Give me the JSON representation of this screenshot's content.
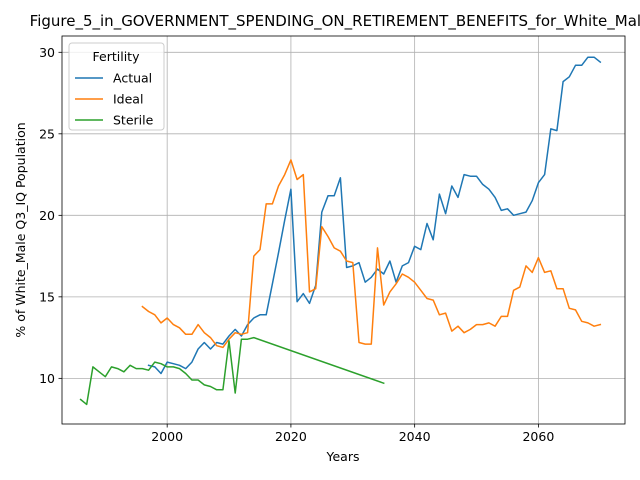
{
  "chart_data": {
    "type": "line",
    "title": "Figure_5_in_GOVERNMENT_SPENDING_ON_RETIREMENT_BENEFITS_for_White_Male",
    "xlabel": "Years",
    "ylabel": "% of White_Male Q3_IQ Population",
    "xlim": [
      1983,
      2074
    ],
    "ylim": [
      7.2,
      31.0
    ],
    "xticks": [
      2000,
      2020,
      2040,
      2060
    ],
    "yticks": [
      10,
      15,
      20,
      25,
      30
    ],
    "grid": true,
    "legend": {
      "title": "Fertility",
      "placement": "top-left"
    },
    "series": [
      {
        "name": "Actual",
        "color": "#1f77b4",
        "x": [
          1997,
          1998,
          1999,
          2000,
          2001,
          2002,
          2003,
          2004,
          2005,
          2006,
          2007,
          2008,
          2009,
          2010,
          2011,
          2012,
          2013,
          2014,
          2015,
          2016,
          2017,
          2018,
          2019,
          2020,
          2021,
          2022,
          2023,
          2024,
          2025,
          2026,
          2027,
          2028,
          2029,
          2030,
          2031,
          2032,
          2033,
          2034,
          2035,
          2036,
          2037,
          2038,
          2039,
          2040,
          2041,
          2042,
          2043,
          2044,
          2045,
          2046,
          2047,
          2048,
          2049,
          2050,
          2051,
          2052,
          2053,
          2054,
          2055,
          2056,
          2057,
          2058,
          2059,
          2060,
          2061,
          2062,
          2063,
          2064,
          2065,
          2066,
          2067,
          2068,
          2069,
          2070
        ],
        "y": [
          10.8,
          10.7,
          10.3,
          11.0,
          10.9,
          10.8,
          10.6,
          11.0,
          11.8,
          12.2,
          11.8,
          12.2,
          12.1,
          12.6,
          13.0,
          12.6,
          13.3,
          13.7,
          13.9,
          13.9,
          15.8,
          17.7,
          19.7,
          21.6,
          14.7,
          15.2,
          14.6,
          15.7,
          20.2,
          21.2,
          21.2,
          22.3,
          16.8,
          16.9,
          17.1,
          15.9,
          16.2,
          16.7,
          16.4,
          17.2,
          15.9,
          16.9,
          17.1,
          18.1,
          17.9,
          19.5,
          18.5,
          21.3,
          20.1,
          21.8,
          21.1,
          22.5,
          22.4,
          22.4,
          21.9,
          21.6,
          21.1,
          20.3,
          20.4,
          20.0,
          20.1,
          20.2,
          20.9,
          22.0,
          22.5,
          25.3,
          25.2,
          28.2,
          28.5,
          29.2,
          29.2,
          29.7,
          29.7,
          29.4
        ]
      },
      {
        "name": "Ideal",
        "color": "#ff7f0e",
        "x": [
          1996,
          1997,
          1998,
          1999,
          2000,
          2001,
          2002,
          2003,
          2004,
          2005,
          2006,
          2007,
          2008,
          2009,
          2010,
          2011,
          2012,
          2013,
          2014,
          2015,
          2016,
          2017,
          2018,
          2019,
          2020,
          2021,
          2022,
          2023,
          2024,
          2025,
          2026,
          2027,
          2028,
          2029,
          2030,
          2031,
          2032,
          2033,
          2034,
          2035,
          2036,
          2037,
          2038,
          2039,
          2040,
          2041,
          2042,
          2043,
          2044,
          2045,
          2046,
          2047,
          2048,
          2049,
          2050,
          2051,
          2052,
          2053,
          2054,
          2055,
          2056,
          2057,
          2058,
          2059,
          2060,
          2061,
          2062,
          2063,
          2064,
          2065,
          2066,
          2067,
          2068,
          2069,
          2070
        ],
        "y": [
          14.4,
          14.1,
          13.9,
          13.4,
          13.7,
          13.3,
          13.1,
          12.7,
          12.7,
          13.3,
          12.8,
          12.5,
          12.0,
          11.9,
          12.4,
          12.8,
          12.7,
          12.8,
          17.5,
          17.9,
          20.7,
          20.7,
          21.8,
          22.5,
          23.4,
          22.2,
          22.5,
          15.3,
          15.5,
          19.3,
          18.7,
          18.0,
          17.8,
          17.2,
          17.1,
          12.2,
          12.1,
          12.1,
          18.0,
          14.5,
          15.3,
          15.8,
          16.4,
          16.2,
          15.9,
          15.4,
          14.9,
          14.8,
          13.9,
          14.0,
          12.9,
          13.2,
          12.8,
          13.0,
          13.3,
          13.3,
          13.4,
          13.2,
          13.8,
          13.8,
          15.4,
          15.6,
          16.9,
          16.5,
          17.4,
          16.5,
          16.6,
          15.5,
          15.5,
          14.3,
          14.2,
          13.5,
          13.4,
          13.2,
          13.3
        ]
      },
      {
        "name": "Sterile",
        "color": "#2ca02c",
        "x": [
          1986,
          1987,
          1988,
          1989,
          1990,
          1991,
          1992,
          1993,
          1994,
          1995,
          1996,
          1997,
          1998,
          1999,
          2000,
          2001,
          2002,
          2003,
          2004,
          2005,
          2006,
          2007,
          2008,
          2009,
          2010,
          2011,
          2012,
          2013,
          2014,
          2035
        ],
        "y": [
          8.7,
          8.4,
          10.7,
          10.4,
          10.1,
          10.7,
          10.6,
          10.4,
          10.8,
          10.6,
          10.6,
          10.5,
          11.0,
          10.9,
          10.7,
          10.7,
          10.6,
          10.3,
          9.9,
          9.9,
          9.6,
          9.5,
          9.3,
          9.3,
          12.3,
          9.1,
          12.4,
          12.4,
          12.5,
          9.7
        ]
      }
    ]
  }
}
